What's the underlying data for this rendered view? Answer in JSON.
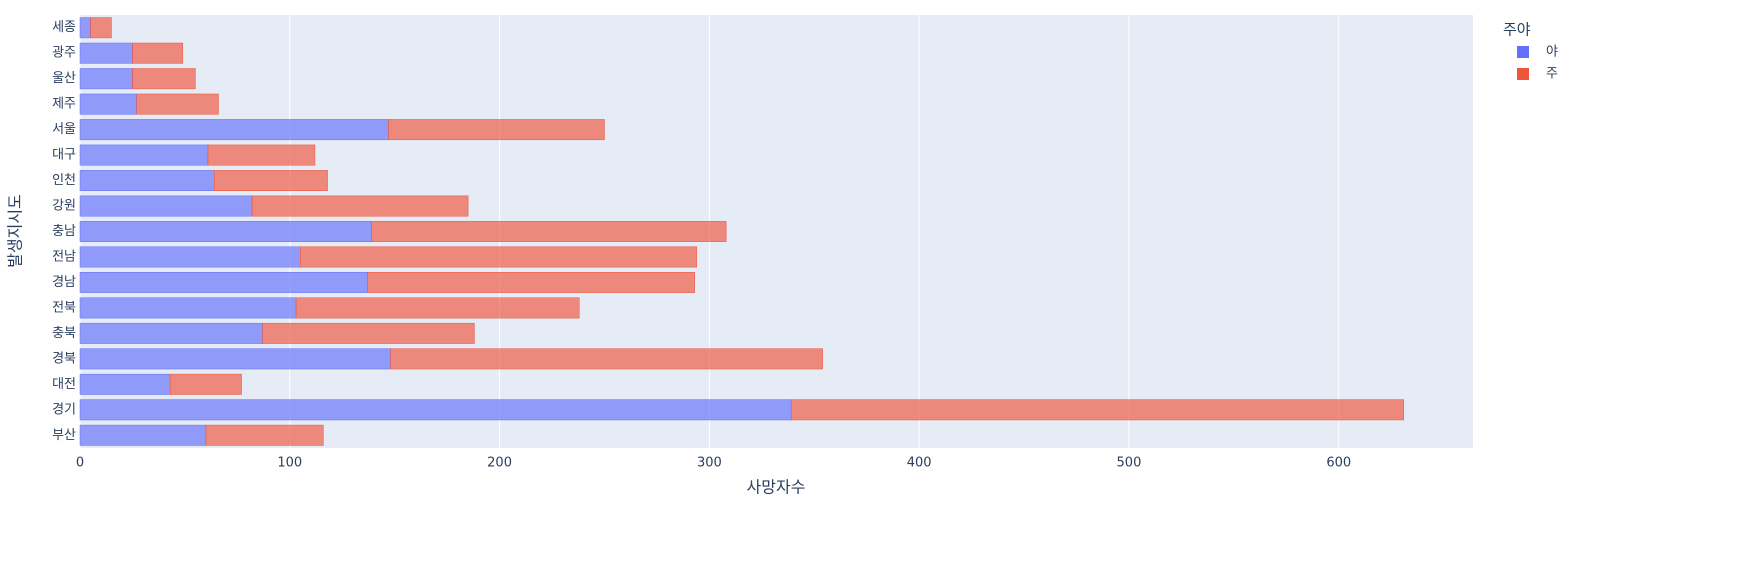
{
  "chart_data": {
    "type": "stacked_bar_h",
    "x_label": "사망자수",
    "y_label": "발생지시도",
    "legend_title": "주야",
    "legend_position": "top-right",
    "grid": true,
    "categories": [
      "세종",
      "광주",
      "울산",
      "제주",
      "서울",
      "대구",
      "인천",
      "강원",
      "충남",
      "전남",
      "경남",
      "전북",
      "충북",
      "경북",
      "대전",
      "경기",
      "부산"
    ],
    "series": [
      {
        "name": "야",
        "color": "#636efa",
        "values": [
          5,
          25,
          25,
          27,
          147,
          61,
          64,
          82,
          139,
          105,
          137,
          103,
          87,
          148,
          43,
          339,
          60
        ]
      },
      {
        "name": "주",
        "color": "#ef553b",
        "values": [
          10,
          24,
          30,
          39,
          103,
          51,
          54,
          103,
          169,
          189,
          156,
          135,
          101,
          206,
          34,
          292,
          56
        ]
      }
    ],
    "xlim": [
      0,
      664
    ],
    "xticks": [
      0,
      100,
      200,
      300,
      400,
      500,
      600
    ]
  }
}
